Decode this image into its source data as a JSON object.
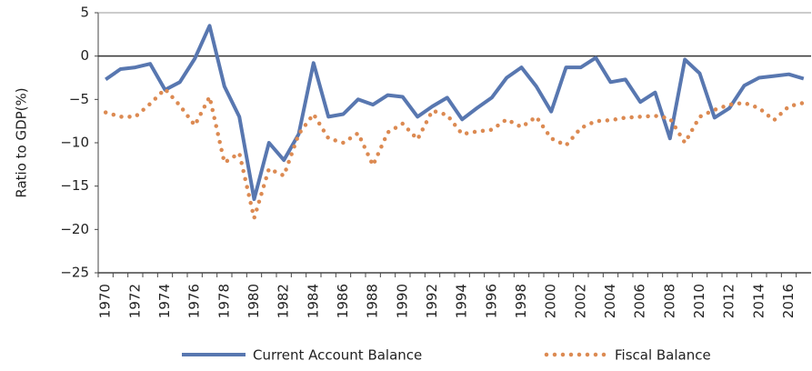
{
  "chart_data": {
    "type": "line",
    "y_label": "Ratio to GDP(%)",
    "categories": [
      "1970",
      null,
      "1972",
      null,
      "1974",
      null,
      "1976",
      null,
      "1978",
      null,
      "1980",
      null,
      "1982",
      null,
      "1984",
      null,
      "1986",
      null,
      "1988",
      null,
      "1990",
      null,
      "1992",
      null,
      "1994",
      null,
      "1996",
      null,
      "1998",
      null,
      "2000",
      null,
      "2002",
      null,
      "2004",
      null,
      "2006",
      null,
      "2008",
      null,
      "2010",
      null,
      "2012",
      null,
      "2014",
      null,
      "2016",
      null
    ],
    "series": [
      {
        "name": "Current Account Balance",
        "color": "#5877b0",
        "style": "solid",
        "values": [
          -2.7,
          -1.5,
          -1.3,
          -0.9,
          -3.9,
          -3.0,
          -0.3,
          3.5,
          -3.5,
          -7.0,
          -16.5,
          -10.0,
          -12.0,
          -9.0,
          -0.8,
          -7.0,
          -6.7,
          -5.0,
          -5.6,
          -4.5,
          -4.7,
          -7.0,
          -5.8,
          -4.8,
          -7.3,
          -6.0,
          -4.8,
          -2.5,
          -1.3,
          -3.5,
          -6.4,
          -1.3,
          -1.3,
          -0.2,
          -3.0,
          -2.7,
          -5.3,
          -4.2,
          -9.5,
          -0.4,
          -2.0,
          -7.1,
          -6.0,
          -3.4,
          -2.5,
          -2.3,
          -2.1,
          -2.6
        ]
      },
      {
        "name": "Fiscal Balance",
        "color": "#dc8a52",
        "style": "dotted",
        "values": [
          -6.5,
          -7.0,
          -7.0,
          -5.5,
          -3.8,
          -5.7,
          -8.0,
          -4.7,
          -12.3,
          -11.2,
          -18.7,
          -13.0,
          -13.8,
          -9.0,
          -6.7,
          -9.5,
          -10.0,
          -8.9,
          -12.6,
          -8.8,
          -7.8,
          -9.6,
          -6.3,
          -6.8,
          -9.0,
          -8.7,
          -8.5,
          -7.3,
          -8.2,
          -7.0,
          -9.5,
          -10.3,
          -8.3,
          -7.5,
          -7.4,
          -7.1,
          -7.0,
          -6.9,
          -7.2,
          -10.0,
          -7.0,
          -6.2,
          -5.6,
          -5.4,
          -6.0,
          -7.4,
          -5.8,
          -5.4
        ]
      }
    ],
    "ylim": [
      -25,
      5
    ],
    "yticks": [
      {
        "value": -25,
        "label": "−25"
      },
      {
        "value": -20,
        "label": "−20"
      },
      {
        "value": -15,
        "label": "−15"
      },
      {
        "value": -10,
        "label": "−10"
      },
      {
        "value": -5,
        "label": "−5"
      },
      0,
      5
    ],
    "grid": false,
    "legend": "bottom"
  }
}
